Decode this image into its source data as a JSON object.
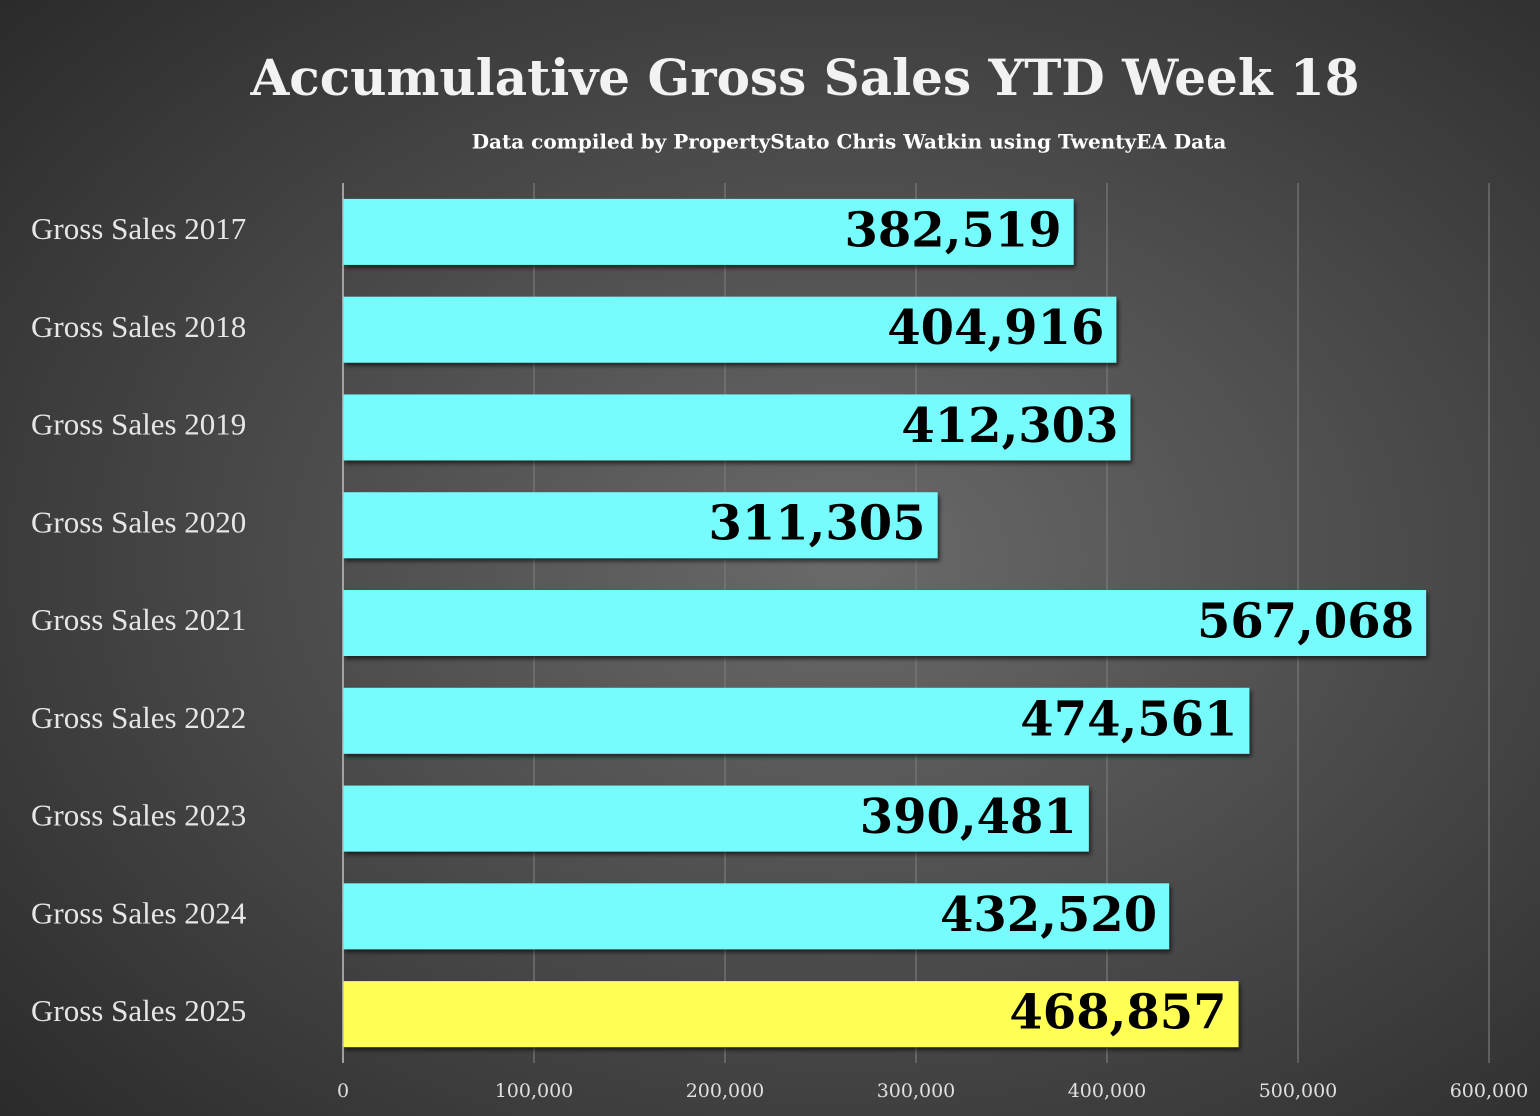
{
  "chart_data": {
    "type": "hbar",
    "title": "Accumulative Gross Sales YTD Week 18",
    "subtitle": "Data compiled by PropertyStato Chris Watkin using TwentyEA Data",
    "categories": [
      "Gross Sales 2017",
      "Gross Sales 2018",
      "Gross Sales 2019",
      "Gross Sales 2020",
      "Gross Sales 2021",
      "Gross Sales 2022",
      "Gross Sales 2023",
      "Gross Sales 2024",
      "Gross Sales 2025"
    ],
    "values": [
      382519,
      404916,
      412303,
      311305,
      567068,
      474561,
      390481,
      432520,
      468857
    ],
    "value_labels": [
      "382,519",
      "404,916",
      "412,303",
      "311,305",
      "567,068",
      "474,561",
      "390,481",
      "432,520",
      "468,857"
    ],
    "colors": [
      "#77fcfd",
      "#77fcfd",
      "#77fcfd",
      "#77fcfd",
      "#77fcfd",
      "#77fcfd",
      "#77fcfd",
      "#77fcfd",
      "#ffff57"
    ],
    "xlim": [
      0,
      600000
    ],
    "xticks": [
      0,
      {
        "value": 100000,
        "label": "100,000"
      },
      {
        "value": 200000,
        "label": "200,000"
      },
      {
        "value": 300000,
        "label": "300,000"
      },
      {
        "value": 400000,
        "label": "400,000"
      },
      {
        "value": 500000,
        "label": "500,000"
      },
      {
        "value": 600000,
        "label": "600,000"
      }
    ],
    "grid": true
  }
}
